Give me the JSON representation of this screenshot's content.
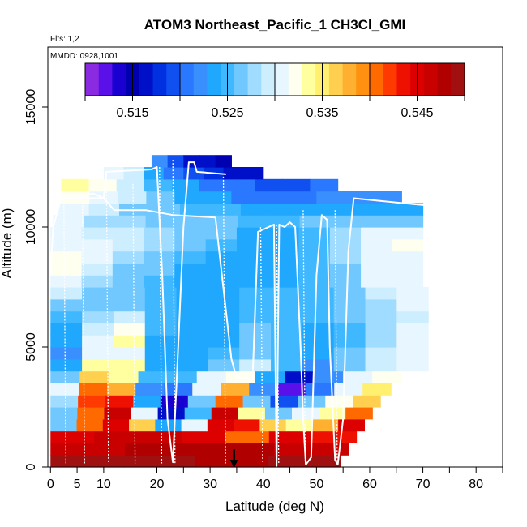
{
  "chart_data": {
    "type": "heatmap",
    "title": "ATOM3 Northeast_Pacific_1 CH3Cl_GMI",
    "flights_note": "Flts: 1,2",
    "date_note": "MMDD: 0928,1001",
    "xlabel": "Latitude (deg N)",
    "ylabel": "Altitude (m)",
    "xlim": [
      -0.5,
      85
    ],
    "ylim": [
      0,
      17500
    ],
    "x_ticks": [
      0,
      5,
      10,
      20,
      30,
      40,
      50,
      60,
      70,
      80
    ],
    "x_tick_labels": [
      "0",
      "5",
      "10",
      "20",
      "30",
      "40",
      "50",
      "60",
      "70",
      "80"
    ],
    "y_ticks": [
      0,
      5000,
      10000,
      15000
    ],
    "y_tick_labels": [
      "0",
      "5000",
      "10000",
      "15000"
    ],
    "colorbar": {
      "range": [
        0.51,
        0.55
      ],
      "ticks": [
        0.515,
        0.525,
        0.535,
        0.545
      ],
      "tick_labels": [
        "0.515",
        "0.525",
        "0.535",
        "0.545"
      ],
      "colors": [
        "#8a2be2",
        "#5a10e8",
        "#1a00d0",
        "#0000b0",
        "#0010c8",
        "#0030e0",
        "#1050f0",
        "#2a78ff",
        "#3a8fff",
        "#20a8ff",
        "#40b8ff",
        "#70c8ff",
        "#a0dcff",
        "#cceeff",
        "#e8f6ff",
        "#fffff0",
        "#ffffa0",
        "#fff070",
        "#ffd050",
        "#ffb030",
        "#ff9010",
        "#ff6a00",
        "#ff3a00",
        "#ee1000",
        "#dd0000",
        "#c80000",
        "#b00000",
        "#a01010"
      ]
    },
    "marker": {
      "x": 34.5,
      "label": "selected latitude"
    },
    "heatmap_rows": [
      {
        "z0": 0,
        "z1": 500,
        "x0": 0,
        "x1": 54.5,
        "values": [
          0.549,
          0.549,
          0.548,
          0.549
        ]
      },
      {
        "z0": 500,
        "z1": 1000,
        "x0": 0,
        "x1": 56,
        "values": [
          0.547,
          0.548,
          0.548,
          0.547
        ]
      },
      {
        "z0": 1000,
        "z1": 1500,
        "x0": 0,
        "x1": 57.5,
        "values": [
          0.545,
          0.546,
          0.547,
          0.545,
          0.54,
          0.545,
          0.544
        ]
      },
      {
        "z0": 1500,
        "z1": 2000,
        "x0": 0,
        "x1": 59,
        "values": [
          0.527,
          0.54,
          0.545,
          0.536,
          0.524,
          0.53,
          0.545,
          0.543,
          0.536,
          0.533,
          0.538,
          0.545
        ]
      },
      {
        "z0": 2000,
        "z1": 2500,
        "x0": 0,
        "x1": 60.5,
        "values": [
          0.526,
          0.541,
          0.546,
          0.53,
          0.516,
          0.525,
          0.546,
          0.534,
          0.526,
          0.53,
          0.534,
          0.54
        ]
      },
      {
        "z0": 2500,
        "z1": 3000,
        "x0": 0,
        "x1": 62,
        "values": [
          0.528,
          0.542,
          0.544,
          0.524,
          0.514,
          0.526,
          0.541,
          0.526,
          0.519,
          0.527,
          0.532,
          0.537
        ]
      },
      {
        "z0": 3000,
        "z1": 3500,
        "x0": 0,
        "x1": 64,
        "values": [
          0.53,
          0.54,
          0.538,
          0.522,
          0.52,
          0.53,
          0.538,
          0.522,
          0.512,
          0.52,
          0.53,
          0.535
        ]
      },
      {
        "z0": 3500,
        "z1": 4000,
        "x0": 0,
        "x1": 66,
        "values": [
          0.526,
          0.536,
          0.534,
          0.525,
          0.525,
          0.531,
          0.532,
          0.524,
          0.516,
          0.522,
          0.53,
          0.532
        ]
      },
      {
        "z0": 4000,
        "z1": 4500,
        "x0": 0,
        "x1": 71,
        "values": [
          0.524,
          0.534,
          0.533,
          0.524,
          0.523,
          0.526,
          0.529,
          0.525,
          0.522,
          0.526,
          0.529,
          0.531
        ]
      },
      {
        "z0": 4500,
        "z1": 5000,
        "x0": 0,
        "x1": 71,
        "values": [
          0.522,
          0.531,
          0.531,
          0.524,
          0.523,
          0.525,
          0.527,
          0.525,
          0.524,
          0.526,
          0.529,
          0.531
        ]
      },
      {
        "z0": 5000,
        "z1": 5500,
        "x0": 0,
        "x1": 71,
        "values": [
          0.523,
          0.53,
          0.533,
          0.524,
          0.523,
          0.524,
          0.526,
          0.525,
          0.524,
          0.525,
          0.528,
          0.53
        ]
      },
      {
        "z0": 5500,
        "z1": 6000,
        "x0": 0,
        "x1": 71,
        "values": [
          0.524,
          0.529,
          0.532,
          0.525,
          0.523,
          0.524,
          0.526,
          0.525,
          0.524,
          0.525,
          0.528,
          0.53
        ]
      },
      {
        "z0": 6000,
        "z1": 6500,
        "x0": 0,
        "x1": 71,
        "values": [
          0.525,
          0.528,
          0.529,
          0.525,
          0.524,
          0.524,
          0.525,
          0.525,
          0.525,
          0.526,
          0.528,
          0.529
        ]
      },
      {
        "z0": 6500,
        "z1": 7000,
        "x0": 0,
        "x1": 71,
        "values": [
          0.527,
          0.527,
          0.527,
          0.525,
          0.524,
          0.524,
          0.525,
          0.525,
          0.525,
          0.526,
          0.528,
          0.53
        ]
      },
      {
        "z0": 7000,
        "z1": 7500,
        "x0": 0,
        "x1": 71,
        "values": [
          0.529,
          0.527,
          0.526,
          0.525,
          0.524,
          0.524,
          0.525,
          0.525,
          0.525,
          0.527,
          0.529,
          0.53
        ]
      },
      {
        "z0": 7500,
        "z1": 8000,
        "x0": 0,
        "x1": 70,
        "values": [
          0.531,
          0.528,
          0.526,
          0.525,
          0.524,
          0.524,
          0.524,
          0.524,
          0.525,
          0.527,
          0.53,
          0.53
        ]
      },
      {
        "z0": 8000,
        "z1": 8500,
        "x0": 0,
        "x1": 70,
        "values": [
          0.532,
          0.529,
          0.527,
          0.526,
          0.524,
          0.524,
          0.524,
          0.524,
          0.525,
          0.527,
          0.53,
          0.531
        ]
      },
      {
        "z0": 8500,
        "z1": 9000,
        "x0": 0,
        "x1": 70,
        "values": [
          0.532,
          0.53,
          0.528,
          0.527,
          0.525,
          0.524,
          0.524,
          0.524,
          0.525,
          0.528,
          0.531,
          0.531
        ]
      },
      {
        "z0": 9000,
        "z1": 9500,
        "x0": 0,
        "x1": 70,
        "values": [
          0.531,
          0.53,
          0.529,
          0.528,
          0.526,
          0.525,
          0.524,
          0.524,
          0.525,
          0.528,
          0.531,
          0.532
        ]
      },
      {
        "z0": 9500,
        "z1": 10000,
        "x0": 0,
        "x1": 70,
        "values": [
          0.53,
          0.529,
          0.529,
          0.528,
          0.527,
          0.526,
          0.524,
          0.524,
          0.525,
          0.528,
          0.53,
          0.531
        ]
      },
      {
        "z0": 10000,
        "z1": 10500,
        "x0": 0.5,
        "x1": 70,
        "values": [
          0.53,
          0.528,
          0.528,
          0.527,
          0.526,
          0.526,
          0.525,
          0.525,
          0.526,
          0.527,
          0.527,
          0.527
        ]
      },
      {
        "z0": 10500,
        "z1": 11000,
        "x0": 1.5,
        "x1": 70,
        "values": [
          0.531,
          0.529,
          0.527,
          0.526,
          0.525,
          0.525,
          0.524,
          0.523,
          0.523,
          0.524,
          0.524,
          0.524
        ]
      },
      {
        "z0": 11000,
        "z1": 11500,
        "x0": 2,
        "x1": 66,
        "values": [
          0.532,
          0.531,
          0.529,
          0.526,
          0.524,
          0.523,
          0.521,
          0.521,
          0.521,
          0.522,
          0.522,
          0.522
        ]
      },
      {
        "z0": 11500,
        "z1": 12000,
        "x0": 2,
        "x1": 54,
        "values": [
          0.533,
          0.532,
          0.529,
          0.525,
          0.523,
          0.521,
          0.52,
          0.519,
          0.519,
          0.52
        ]
      },
      {
        "z0": 12000,
        "z1": 12500,
        "x0": 10,
        "x1": 40,
        "values": [
          0.531,
          0.529,
          0.524,
          0.521,
          0.519,
          0.518,
          0.517,
          0.517
        ]
      },
      {
        "z0": 12500,
        "z1": 13000,
        "x0": 19,
        "x1": 34,
        "values": [
          0.522,
          0.519,
          0.517,
          0.516,
          0.515
        ]
      }
    ],
    "flight_tracks": [
      {
        "name": "descent-ascent profiles",
        "points": [
          [
            0,
            8000
          ],
          [
            0.5,
            10000
          ],
          [
            1.5,
            10800
          ],
          [
            2,
            11200
          ],
          [
            10,
            11200
          ],
          [
            12,
            10700
          ],
          [
            18,
            10700
          ],
          [
            23,
            10500
          ],
          [
            31,
            10400
          ],
          [
            34,
            4500
          ],
          [
            35,
            3700
          ],
          [
            38,
            3700
          ],
          [
            39,
            9800
          ],
          [
            41,
            10000
          ],
          [
            42,
            10100
          ],
          [
            42.5,
            0
          ],
          [
            43,
            10100
          ],
          [
            44,
            10000
          ],
          [
            45,
            10200
          ],
          [
            46,
            10000
          ],
          [
            47,
            5000
          ],
          [
            47.5,
            2000
          ],
          [
            48,
            100
          ],
          [
            49,
            400
          ],
          [
            50,
            8000
          ],
          [
            51,
            10500
          ],
          [
            52,
            10300
          ],
          [
            52.5,
            5000
          ],
          [
            53.5,
            300
          ],
          [
            54,
            100
          ],
          [
            55,
            2000
          ],
          [
            56,
            9000
          ],
          [
            57,
            11200
          ],
          [
            66,
            11000
          ],
          [
            71,
            10900
          ]
        ]
      },
      {
        "name": "upper leg",
        "points": [
          [
            2,
            11300
          ],
          [
            6,
            11300
          ],
          [
            8,
            11400
          ],
          [
            10,
            11200
          ],
          [
            10.5,
            12300
          ],
          [
            19,
            12400
          ],
          [
            20,
            12500
          ],
          [
            21,
            8000
          ],
          [
            22,
            2000
          ],
          [
            23,
            200
          ],
          [
            24,
            5000
          ],
          [
            25,
            10000
          ],
          [
            26,
            12700
          ],
          [
            27,
            12700
          ],
          [
            27.5,
            12300
          ],
          [
            33,
            12200
          ]
        ]
      }
    ],
    "vertical_profiles": [
      {
        "x": 2.5,
        "z_top": 11300
      },
      {
        "x": 6,
        "z_top": 11300
      },
      {
        "x": 10.5,
        "z_top": 12300
      },
      {
        "x": 15.5,
        "z_top": 11800
      },
      {
        "x": 20.5,
        "z_top": 12500
      },
      {
        "x": 23,
        "z_top": 12800
      },
      {
        "x": 32.5,
        "z_top": 12100
      },
      {
        "x": 39.5,
        "z_top": 10000
      },
      {
        "x": 42.5,
        "z_top": 10100
      },
      {
        "x": 47.5,
        "z_top": 10700
      },
      {
        "x": 53.5,
        "z_top": 10700
      }
    ]
  }
}
